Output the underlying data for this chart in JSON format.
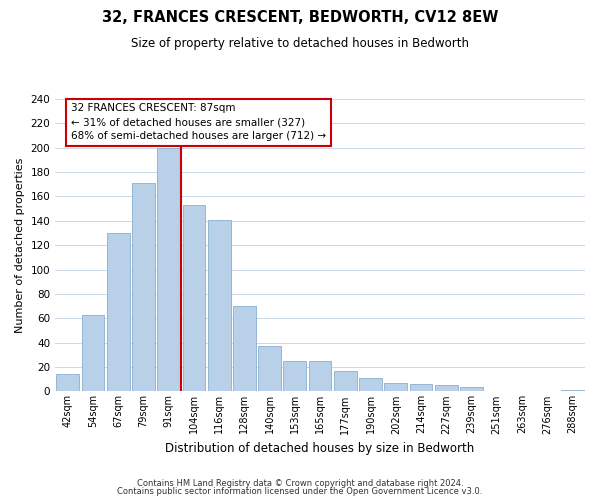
{
  "title": "32, FRANCES CRESCENT, BEDWORTH, CV12 8EW",
  "subtitle": "Size of property relative to detached houses in Bedworth",
  "xlabel": "Distribution of detached houses by size in Bedworth",
  "ylabel": "Number of detached properties",
  "bar_labels": [
    "42sqm",
    "54sqm",
    "67sqm",
    "79sqm",
    "91sqm",
    "104sqm",
    "116sqm",
    "128sqm",
    "140sqm",
    "153sqm",
    "165sqm",
    "177sqm",
    "190sqm",
    "202sqm",
    "214sqm",
    "227sqm",
    "239sqm",
    "251sqm",
    "263sqm",
    "276sqm",
    "288sqm"
  ],
  "bar_values": [
    14,
    63,
    130,
    171,
    200,
    153,
    141,
    70,
    37,
    25,
    25,
    17,
    11,
    7,
    6,
    5,
    4,
    0,
    0,
    0,
    1
  ],
  "bar_color": "#b8d0e8",
  "bar_edge_color": "#8ab0d0",
  "vline_color": "#cc0000",
  "vline_bar_index": 3,
  "ylim": [
    0,
    240
  ],
  "yticks": [
    0,
    20,
    40,
    60,
    80,
    100,
    120,
    140,
    160,
    180,
    200,
    220,
    240
  ],
  "annotation_title": "32 FRANCES CRESCENT: 87sqm",
  "annotation_line1": "← 31% of detached houses are smaller (327)",
  "annotation_line2": "68% of semi-detached houses are larger (712) →",
  "footer1": "Contains HM Land Registry data © Crown copyright and database right 2024.",
  "footer2": "Contains public sector information licensed under the Open Government Licence v3.0.",
  "background_color": "#ffffff",
  "grid_color": "#c8d8e8"
}
